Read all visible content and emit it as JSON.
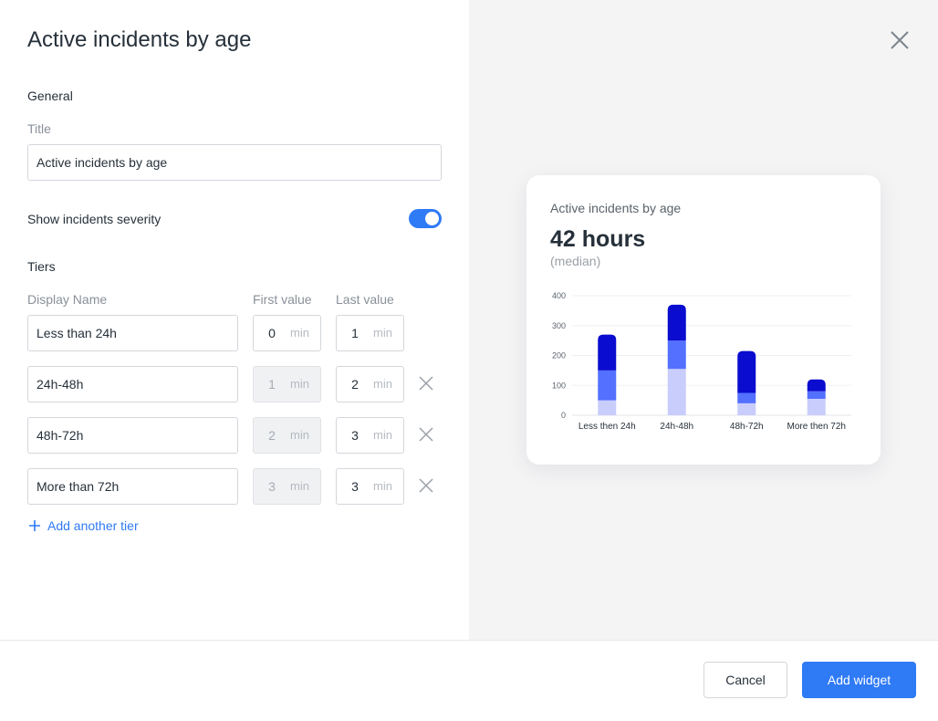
{
  "dialog": {
    "title": "Active incidents by age"
  },
  "form": {
    "general_label": "General",
    "title_label": "Title",
    "title_value": "Active incidents by age",
    "severity_label": "Show incidents severity",
    "severity_enabled": true,
    "tiers_label": "Tiers",
    "col_display_name": "Display Name",
    "col_first_value": "First value",
    "col_last_value": "Last value",
    "unit": "min",
    "tiers": [
      {
        "name": "Less than 24h",
        "first": "0",
        "last": "1",
        "first_disabled": false,
        "removable": false
      },
      {
        "name": "24h-48h",
        "first": "1",
        "last": "2",
        "first_disabled": true,
        "removable": true
      },
      {
        "name": "48h-72h",
        "first": "2",
        "last": "3",
        "first_disabled": true,
        "removable": true
      },
      {
        "name": "More than 72h",
        "first": "3",
        "last": "3",
        "first_disabled": true,
        "removable": true
      }
    ],
    "add_tier_label": "Add another tier"
  },
  "preview": {
    "card_title": "Active incidents by age",
    "value": "42 hours",
    "value_sub": "(median)"
  },
  "chart_data": {
    "type": "bar",
    "stacked": true,
    "categories": [
      "Less then 24h",
      "24h-48h",
      "48h-72h",
      "More then 72h"
    ],
    "series": [
      {
        "color": "#c8cdfb",
        "values": [
          50,
          155,
          40,
          55
        ]
      },
      {
        "color": "#5370ff",
        "values": [
          100,
          95,
          35,
          25
        ]
      },
      {
        "color": "#0a0ccf",
        "values": [
          120,
          120,
          140,
          40
        ]
      }
    ],
    "ylim": [
      0,
      400
    ],
    "yticks": [
      0,
      100,
      200,
      300,
      400
    ],
    "grid": true
  },
  "footer": {
    "cancel_label": "Cancel",
    "add_label": "Add widget"
  },
  "colors": {
    "accent": "#2f7af5"
  }
}
